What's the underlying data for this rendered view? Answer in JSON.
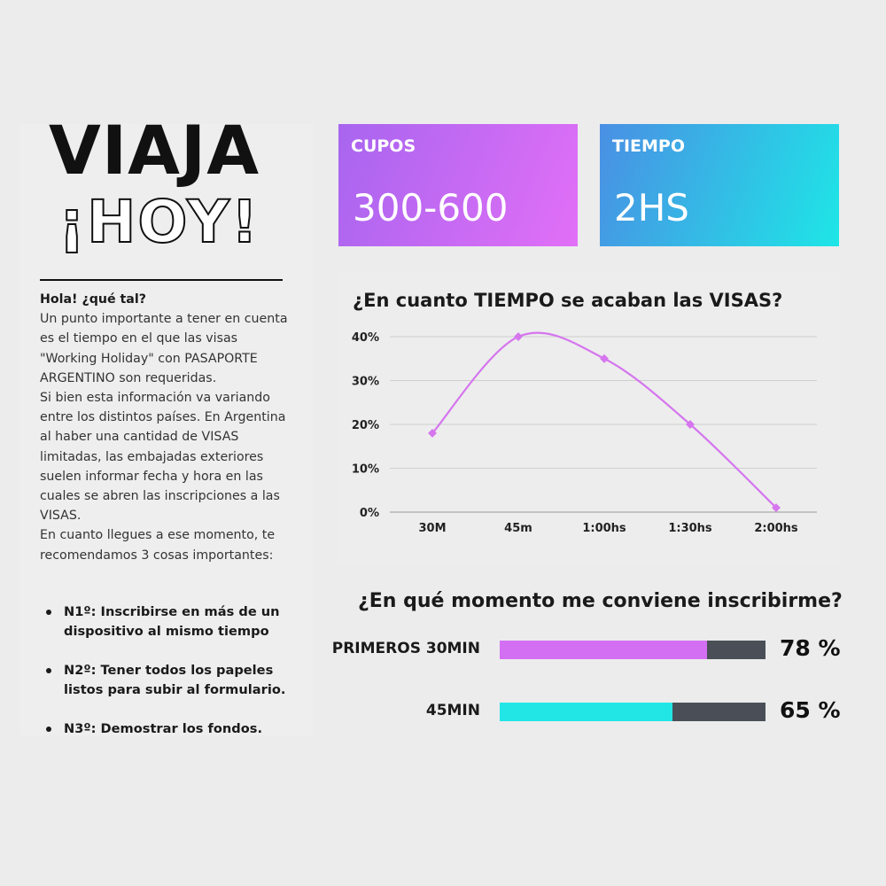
{
  "header": {
    "title_line1": "VIAJA",
    "title_line2": "¡HOY!"
  },
  "intro": {
    "greeting": "Hola! ¿qué tal?",
    "paragraph1": "Un punto importante a tener en cuenta es el tiempo en el que las visas \"Working Holiday\" con PASAPORTE ARGENTINO son requeridas.",
    "paragraph2": "Si bien esta información va variando entre los distintos países. En Argentina al haber una cantidad de VISAS limitadas, las embajadas exteriores suelen informar fecha y hora en las cuales se abren las inscripciones a las VISAS.",
    "paragraph3": "En cuanto llegues a ese momento, te recomendamos 3 cosas importantes:"
  },
  "tips": [
    "N1º: Inscribirse en más de un dispositivo al mismo tiempo",
    "N2º: Tener todos los papeles listos para subir al formulario.",
    "N3º: Demostrar los fondos."
  ],
  "cards": {
    "cupos": {
      "label": "CUPOS",
      "value": "300-600"
    },
    "tiempo": {
      "label": "TIEMPO",
      "value": "2HS"
    }
  },
  "colors": {
    "line": "#d576ee",
    "bar_purple": "#d36ff2",
    "bar_cyan": "#22e6e6",
    "bar_track": "#4a4f57"
  },
  "chart_data": [
    {
      "type": "line",
      "title": "¿En cuanto TIEMPO se acaban las VISAS?",
      "categories": [
        "30M",
        "45m",
        "1:00hs",
        "1:30hs",
        "2:00hs"
      ],
      "series": [
        {
          "values": [
            18,
            40,
            35,
            20,
            1
          ]
        }
      ],
      "y_ticks": [
        "0%",
        "10%",
        "20%",
        "30%",
        "40%"
      ],
      "ylim": [
        0,
        40
      ],
      "grid": true,
      "smooth": true
    },
    {
      "type": "bar",
      "orientation": "horizontal",
      "title": "¿En qué momento me conviene inscribirme?",
      "categories": [
        "PRIMEROS 30MIN",
        "45MIN"
      ],
      "values": [
        78,
        65
      ],
      "value_labels": [
        "78 %",
        "65 %"
      ],
      "xlim": [
        0,
        100
      ]
    }
  ]
}
